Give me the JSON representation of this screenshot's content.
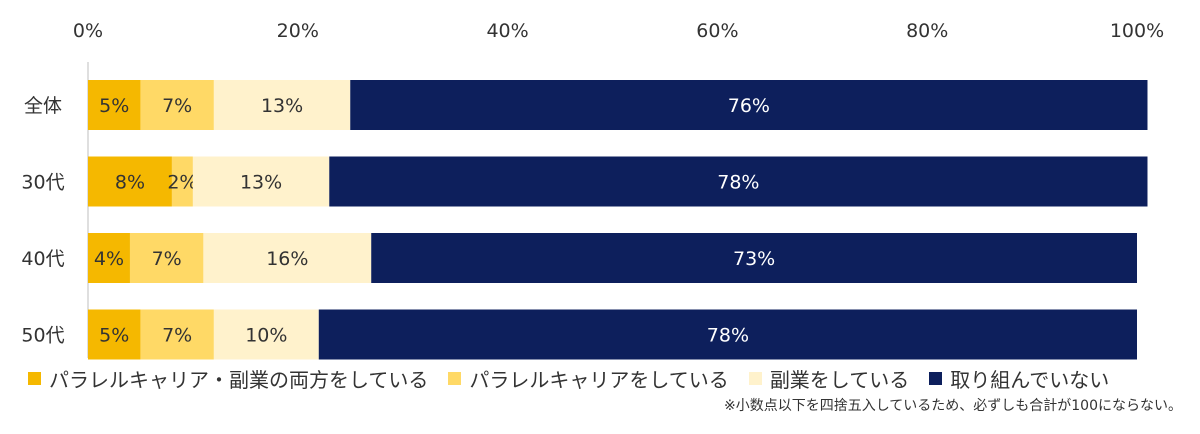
{
  "chart_data": {
    "type": "bar",
    "orientation": "horizontal",
    "stacked": true,
    "categories": [
      "全体",
      "30代",
      "40代",
      "50代"
    ],
    "xlim": [
      0,
      100
    ],
    "x_ticks": [
      "0%",
      "20%",
      "40%",
      "60%",
      "80%",
      "100%"
    ],
    "grid": false,
    "legend_position": "bottom",
    "series": [
      {
        "name": "パラレルキャリア・副業の両方をしている",
        "color": "#f5b800",
        "values": [
          5,
          8,
          4,
          5
        ],
        "labels": [
          "5%",
          "8%",
          "4%",
          "5%"
        ]
      },
      {
        "name": "パラレルキャリアをしている",
        "color": "#ffd966",
        "values": [
          7,
          2,
          7,
          7
        ],
        "labels": [
          "7%",
          "2%",
          "7%",
          "7%"
        ]
      },
      {
        "name": "副業をしている",
        "color": "#fff2cc",
        "values": [
          13,
          13,
          16,
          10
        ],
        "labels": [
          "13%",
          "13%",
          "16%",
          "10%"
        ]
      },
      {
        "name": "取り組んでいない",
        "color": "#0d1f5c",
        "values": [
          76,
          78,
          73,
          78
        ],
        "labels": [
          "76%",
          "78%",
          "73%",
          "78%"
        ]
      }
    ],
    "note": "※小数点以下を四捨五入しているため、必ずしも合計が100にならない。"
  }
}
